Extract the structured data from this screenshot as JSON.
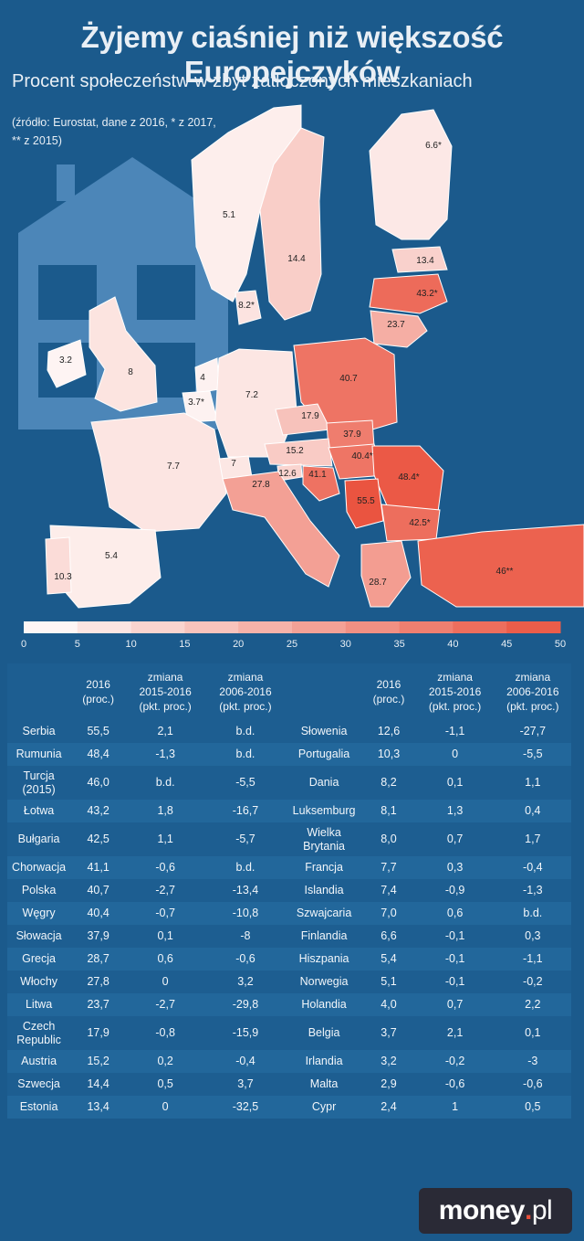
{
  "header": {
    "title": "Żyjemy ciaśniej niż większość Europejczyków",
    "subtitle": "Procent społeczeństw w zbyt zatłoczonych mieszkaniach",
    "source_line1": "(źródło: Eurostat, dane z 2016, * z 2017,",
    "source_line2": "** z 2015)"
  },
  "colors": {
    "background": "#1b5a8c",
    "scale_start": "#ffffff",
    "scale_end": "#ea5440",
    "house": "#4c86b8"
  },
  "chart_data": [
    {
      "type": "map",
      "title": "Procent społeczeństw w zbyt zatłoczonych mieszkaniach",
      "scale": {
        "min": 0,
        "max": 50,
        "ticks": [
          0,
          5,
          10,
          15,
          20,
          25,
          30,
          35,
          40,
          45,
          50
        ]
      },
      "labels": [
        {
          "region": "Norway",
          "label": "5.1",
          "value": 5.1
        },
        {
          "region": "Sweden",
          "label": "14.4",
          "value": 14.4
        },
        {
          "region": "Finland",
          "label": "6.6*",
          "value": 6.6
        },
        {
          "region": "Estonia",
          "label": "13.4",
          "value": 13.4
        },
        {
          "region": "Latvia",
          "label": "43.2*",
          "value": 43.2
        },
        {
          "region": "Lithuania",
          "label": "23.7",
          "value": 23.7
        },
        {
          "region": "Denmark",
          "label": "8.2*",
          "value": 8.2
        },
        {
          "region": "Ireland",
          "label": "3.2",
          "value": 3.2
        },
        {
          "region": "United Kingdom",
          "label": "8",
          "value": 8.0
        },
        {
          "region": "Netherlands",
          "label": "4",
          "value": 4.0
        },
        {
          "region": "Belgium",
          "label": "3.7*",
          "value": 3.7
        },
        {
          "region": "Germany",
          "label": "7.2",
          "value": 7.2
        },
        {
          "region": "Poland",
          "label": "40.7",
          "value": 40.7
        },
        {
          "region": "Czech Republic",
          "label": "17.9",
          "value": 17.9
        },
        {
          "region": "Slovakia",
          "label": "37.9",
          "value": 37.9
        },
        {
          "region": "Austria",
          "label": "15.2",
          "value": 15.2
        },
        {
          "region": "Hungary",
          "label": "40.4*",
          "value": 40.4
        },
        {
          "region": "Romania",
          "label": "48.4*",
          "value": 48.4
        },
        {
          "region": "France",
          "label": "7.7",
          "value": 7.7
        },
        {
          "region": "Switzerland",
          "label": "7",
          "value": 7.0
        },
        {
          "region": "Slovenia",
          "label": "12.6",
          "value": 12.6
        },
        {
          "region": "Croatia",
          "label": "41.1",
          "value": 41.1
        },
        {
          "region": "Italy",
          "label": "27.8",
          "value": 27.8
        },
        {
          "region": "Serbia",
          "label": "55.5",
          "value": 55.5
        },
        {
          "region": "Bulgaria",
          "label": "42.5*",
          "value": 42.5
        },
        {
          "region": "Spain",
          "label": "5.4",
          "value": 5.4
        },
        {
          "region": "Portugal",
          "label": "10.3",
          "value": 10.3
        },
        {
          "region": "Greece",
          "label": "28.7",
          "value": 28.7
        },
        {
          "region": "Turkey",
          "label": "46**",
          "value": 46.0
        }
      ]
    },
    {
      "type": "table",
      "columns": [
        "",
        "2016\n(proc.)",
        "zmiana\n2015-2016\n(pkt. proc.)",
        "zmiana\n2006-2016\n(pkt. proc.)"
      ],
      "left_rows": [
        [
          "Serbia",
          "55,5",
          "2,1",
          "b.d."
        ],
        [
          "Rumunia",
          "48,4",
          "-1,3",
          "b.d."
        ],
        [
          "Turcja\n(2015)",
          "46,0",
          "b.d.",
          "-5,5"
        ],
        [
          "Łotwa",
          "43,2",
          "1,8",
          "-16,7"
        ],
        [
          "Bułgaria",
          "42,5",
          "1,1",
          "-5,7"
        ],
        [
          "Chorwacja",
          "41,1",
          "-0,6",
          "b.d."
        ],
        [
          "Polska",
          "40,7",
          "-2,7",
          "-13,4"
        ],
        [
          "Węgry",
          "40,4",
          "-0,7",
          "-10,8"
        ],
        [
          "Słowacja",
          "37,9",
          "0,1",
          "-8"
        ],
        [
          "Grecja",
          "28,7",
          "0,6",
          "-0,6"
        ],
        [
          "Włochy",
          "27,8",
          "0",
          "3,2"
        ],
        [
          "Litwa",
          "23,7",
          "-2,7",
          "-29,8"
        ],
        [
          "Czech\nRepublic",
          "17,9",
          "-0,8",
          "-15,9"
        ],
        [
          "Austria",
          "15,2",
          "0,2",
          "-0,4"
        ],
        [
          "Szwecja",
          "14,4",
          "0,5",
          "3,7"
        ],
        [
          "Estonia",
          "13,4",
          "0",
          "-32,5"
        ]
      ],
      "right_rows": [
        [
          "Słowenia",
          "12,6",
          "-1,1",
          "-27,7"
        ],
        [
          "Portugalia",
          "10,3",
          "0",
          "-5,5"
        ],
        [
          "Dania",
          "8,2",
          "0,1",
          "1,1"
        ],
        [
          "Luksemburg",
          "8,1",
          "1,3",
          "0,4"
        ],
        [
          "Wielka\nBrytania",
          "8,0",
          "0,7",
          "1,7"
        ],
        [
          "Francja",
          "7,7",
          "0,3",
          "-0,4"
        ],
        [
          "Islandia",
          "7,4",
          "-0,9",
          "-1,3"
        ],
        [
          "Szwajcaria",
          "7,0",
          "0,6",
          "b.d."
        ],
        [
          "Finlandia",
          "6,6",
          "-0,1",
          "0,3"
        ],
        [
          "Hiszpania",
          "5,4",
          "-0,1",
          "-1,1"
        ],
        [
          "Norwegia",
          "5,1",
          "-0,1",
          "-0,2"
        ],
        [
          "Holandia",
          "4,0",
          "0,7",
          "2,2"
        ],
        [
          "Belgia",
          "3,7",
          "2,1",
          "0,1"
        ],
        [
          "Irlandia",
          "3,2",
          "-0,2",
          "-3"
        ],
        [
          "Malta",
          "2,9",
          "-0,6",
          "-0,6"
        ],
        [
          "Cypr",
          "2,4",
          "1",
          "0,5"
        ]
      ]
    }
  ],
  "logo": {
    "brand": "money",
    "dot": ".",
    "tld": "pl"
  }
}
